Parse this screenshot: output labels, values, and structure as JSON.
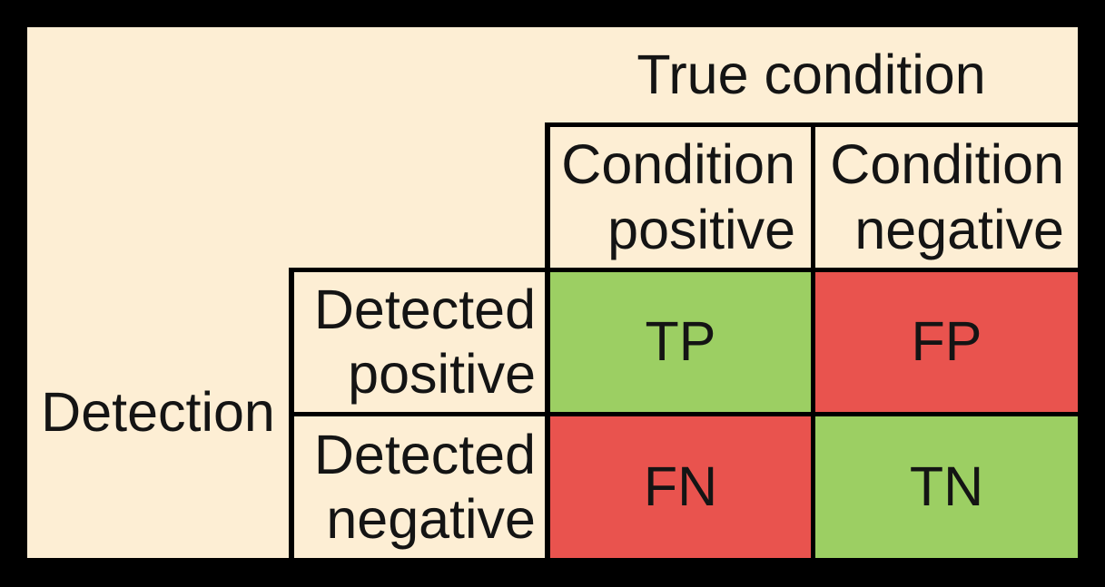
{
  "colors": {
    "canvas": "#000000",
    "panel": "#FDEED4",
    "grid": "#000000",
    "text": "#141414",
    "positive": "#9CCF63",
    "negative": "#E9534E"
  },
  "matrix": {
    "column_axis_label": "True condition",
    "row_axis_label": "Detection",
    "column_headers": [
      {
        "line1": "Condition",
        "line2": "positive"
      },
      {
        "line1": "Condition",
        "line2": "negative"
      }
    ],
    "row_headers": [
      {
        "line1": "Detected",
        "line2": "positive"
      },
      {
        "line1": "Detected",
        "line2": "negative"
      }
    ],
    "cells": [
      [
        {
          "label": "TP",
          "kind": "positive"
        },
        {
          "label": "FP",
          "kind": "negative"
        }
      ],
      [
        {
          "label": "FN",
          "kind": "negative"
        },
        {
          "label": "TN",
          "kind": "positive"
        }
      ]
    ]
  }
}
